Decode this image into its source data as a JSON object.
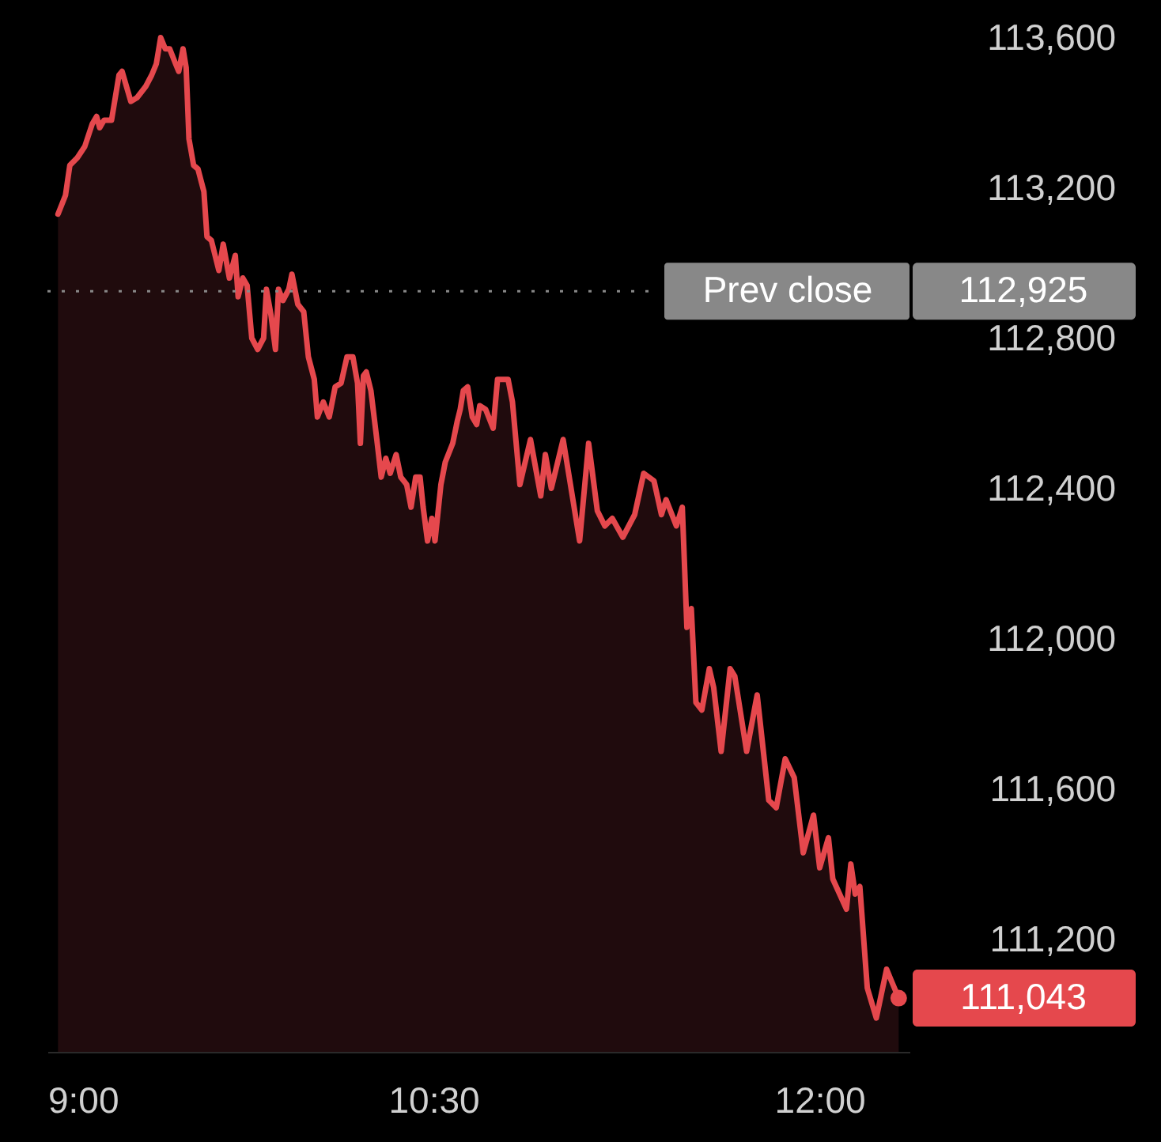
{
  "chart_data": {
    "type": "area",
    "color": "#e5484d",
    "x": [
      9.041,
      9.07,
      9.087,
      9.116,
      9.145,
      9.174,
      9.191,
      9.203,
      9.22,
      9.249,
      9.278,
      9.29,
      9.324,
      9.348,
      9.382,
      9.405,
      9.423,
      9.44,
      9.458,
      9.475,
      9.498,
      9.51,
      9.527,
      9.539,
      9.55,
      9.568,
      9.585,
      9.608,
      9.62,
      9.637,
      9.666,
      9.683,
      9.707,
      9.73,
      9.741,
      9.759,
      9.776,
      9.794,
      9.817,
      9.84,
      9.851,
      9.869,
      9.886,
      9.898,
      9.915,
      9.938,
      9.95,
      9.973,
      9.996,
      10.014,
      10.037,
      10.049,
      10.072,
      10.095,
      10.118,
      10.141,
      10.164,
      10.187,
      10.205,
      10.216,
      10.228,
      10.239,
      10.257,
      10.28,
      10.297,
      10.315,
      10.332,
      10.355,
      10.373,
      10.396,
      10.413,
      10.431,
      10.448,
      10.46,
      10.477,
      10.494,
      10.506,
      10.529,
      10.546,
      10.575,
      10.593,
      10.604,
      10.616,
      10.633,
      10.651,
      10.668,
      10.68,
      10.703,
      10.732,
      10.749,
      10.79,
      10.807,
      10.836,
      10.877,
      10.917,
      10.935,
      10.958,
      11.004,
      11.068,
      11.103,
      11.137,
      11.166,
      11.195,
      11.236,
      11.282,
      11.317,
      11.357,
      11.386,
      11.404,
      11.444,
      11.467,
      11.485,
      11.502,
      11.52,
      11.543,
      11.572,
      11.589,
      11.618,
      11.653,
      11.671,
      11.717,
      11.758,
      11.803,
      11.832,
      11.867,
      11.902,
      11.937,
      11.977,
      12.001,
      12.035,
      12.052,
      12.105,
      12.122,
      12.139,
      12.157,
      12.186,
      12.221,
      12.261,
      12.279,
      12.308
    ],
    "values": [
      113130,
      113180,
      113260,
      113280,
      113310,
      113370,
      113390,
      113360,
      113380,
      113380,
      113500,
      113510,
      113430,
      113440,
      113470,
      113500,
      113530,
      113600,
      113570,
      113570,
      113530,
      113510,
      113570,
      113520,
      113330,
      113260,
      113250,
      113190,
      113070,
      113060,
      112980,
      113050,
      112960,
      113020,
      112910,
      112960,
      112940,
      112800,
      112770,
      112800,
      112930,
      112860,
      112770,
      112930,
      112900,
      112930,
      112970,
      112890,
      112870,
      112750,
      112690,
      112590,
      112630,
      112590,
      112670,
      112680,
      112750,
      112750,
      112680,
      112520,
      112700,
      112710,
      112660,
      112530,
      112430,
      112480,
      112440,
      112490,
      112430,
      112410,
      112350,
      112430,
      112430,
      112350,
      112260,
      112320,
      112260,
      112410,
      112470,
      112520,
      112580,
      112610,
      112660,
      112670,
      112590,
      112570,
      112620,
      112610,
      112560,
      112690,
      112690,
      112630,
      112410,
      112530,
      112380,
      112490,
      112400,
      112530,
      112260,
      112520,
      112340,
      112300,
      112320,
      112270,
      112330,
      112440,
      112420,
      112330,
      112370,
      112300,
      112350,
      112030,
      112080,
      111830,
      111810,
      111920,
      111870,
      111700,
      111920,
      111900,
      111700,
      111850,
      111570,
      111550,
      111680,
      111630,
      111430,
      111530,
      111390,
      111470,
      111360,
      111280,
      111400,
      111320,
      111340,
      111070,
      110990,
      111120,
      111090,
      111043
    ],
    "xlim": [
      9,
      12.35
    ],
    "ylim": [
      110900,
      113700
    ],
    "xticks": [
      {
        "value": 9,
        "label": "9:00"
      },
      {
        "value": 10.5,
        "label": "10:30"
      },
      {
        "value": 12,
        "label": "12:00"
      }
    ],
    "yticks": [
      {
        "value": 111200,
        "label": "111,200"
      },
      {
        "value": 111600,
        "label": "111,600"
      },
      {
        "value": 112000,
        "label": "112,000"
      },
      {
        "value": 112400,
        "label": "112,400"
      },
      {
        "value": 112800,
        "label": "112,800"
      },
      {
        "value": 113200,
        "label": "113,200"
      },
      {
        "value": 113600,
        "label": "113,600"
      }
    ],
    "ref_lines": [
      {
        "axis": "y",
        "value": 112925,
        "label": "Prev close",
        "color": "#888888",
        "line_style": "dotted"
      }
    ],
    "annotations": [
      "112,925",
      {
        "text": "111,043",
        "x": 12.308,
        "y": 111043
      }
    ]
  }
}
